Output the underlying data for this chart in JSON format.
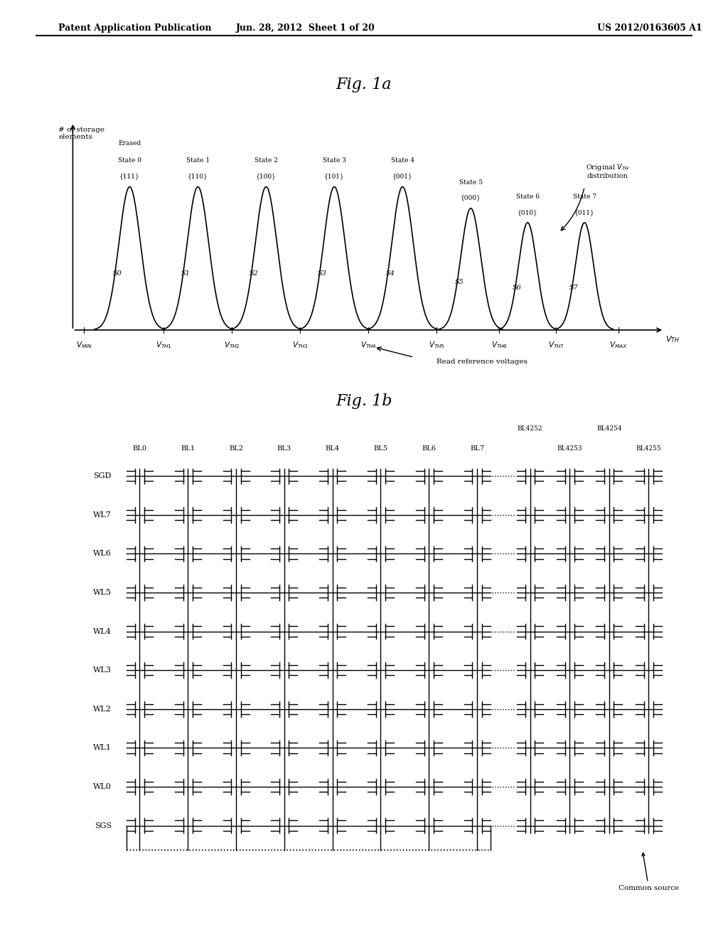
{
  "fig1a_title": "Fig. 1a",
  "fig1b_title": "Fig. 1b",
  "header_left": "Patent Application Publication",
  "header_mid": "Jun. 28, 2012  Sheet 1 of 20",
  "header_right": "US 2012/0163605 A1",
  "states": [
    {
      "name": "Erased\nState 0",
      "code": "{111}",
      "label": "S0",
      "x": 1.0
    },
    {
      "name": "State 1",
      "code": "{110}",
      "label": "S1",
      "x": 2.2
    },
    {
      "name": "State 2",
      "code": "{100}",
      "label": "S2",
      "x": 3.4
    },
    {
      "name": "State 3",
      "code": "{101}",
      "label": "S3",
      "x": 4.6
    },
    {
      "name": "State 4",
      "code": "{001}",
      "label": "S4",
      "x": 5.8
    },
    {
      "name": "State 5",
      "code": "{000}",
      "label": "S5",
      "x": 7.0
    },
    {
      "name": "State 6",
      "code": "{010}",
      "label": "S6",
      "x": 8.0
    },
    {
      "name": "State 7",
      "code": "{011}",
      "label": "S7",
      "x": 9.0
    }
  ],
  "peak_heights": [
    1.0,
    1.0,
    1.0,
    1.0,
    1.0,
    0.85,
    0.75,
    0.75
  ],
  "peak_widths": [
    0.38,
    0.38,
    0.38,
    0.38,
    0.38,
    0.35,
    0.32,
    0.32
  ],
  "x_axis_labels": [
    "V_{MIN}",
    "V_{TH1}",
    "V_{TH2}",
    "V_{TH3}",
    "V_{TH4}",
    "V_{TH5}",
    "V_{TH6}",
    "V_{TH7}",
    "V_{MAX}"
  ],
  "x_axis_positions": [
    0.2,
    1.6,
    2.8,
    4.0,
    5.2,
    6.4,
    7.5,
    8.5,
    9.6
  ],
  "bg_color": "#ffffff",
  "line_color": "#000000",
  "grid_rows": [
    "SGD",
    "WL7",
    "WL6",
    "WL5",
    "WL4",
    "WL3",
    "WL2",
    "WL1",
    "WL0",
    "SGS"
  ],
  "col_labels_left": [
    "BL0",
    "BL1",
    "BL2",
    "BL3",
    "BL4",
    "BL5",
    "BL6",
    "BL7"
  ],
  "col_labels_right": [
    "BL4252",
    "BL4253",
    "BL4254",
    "BL4255"
  ]
}
